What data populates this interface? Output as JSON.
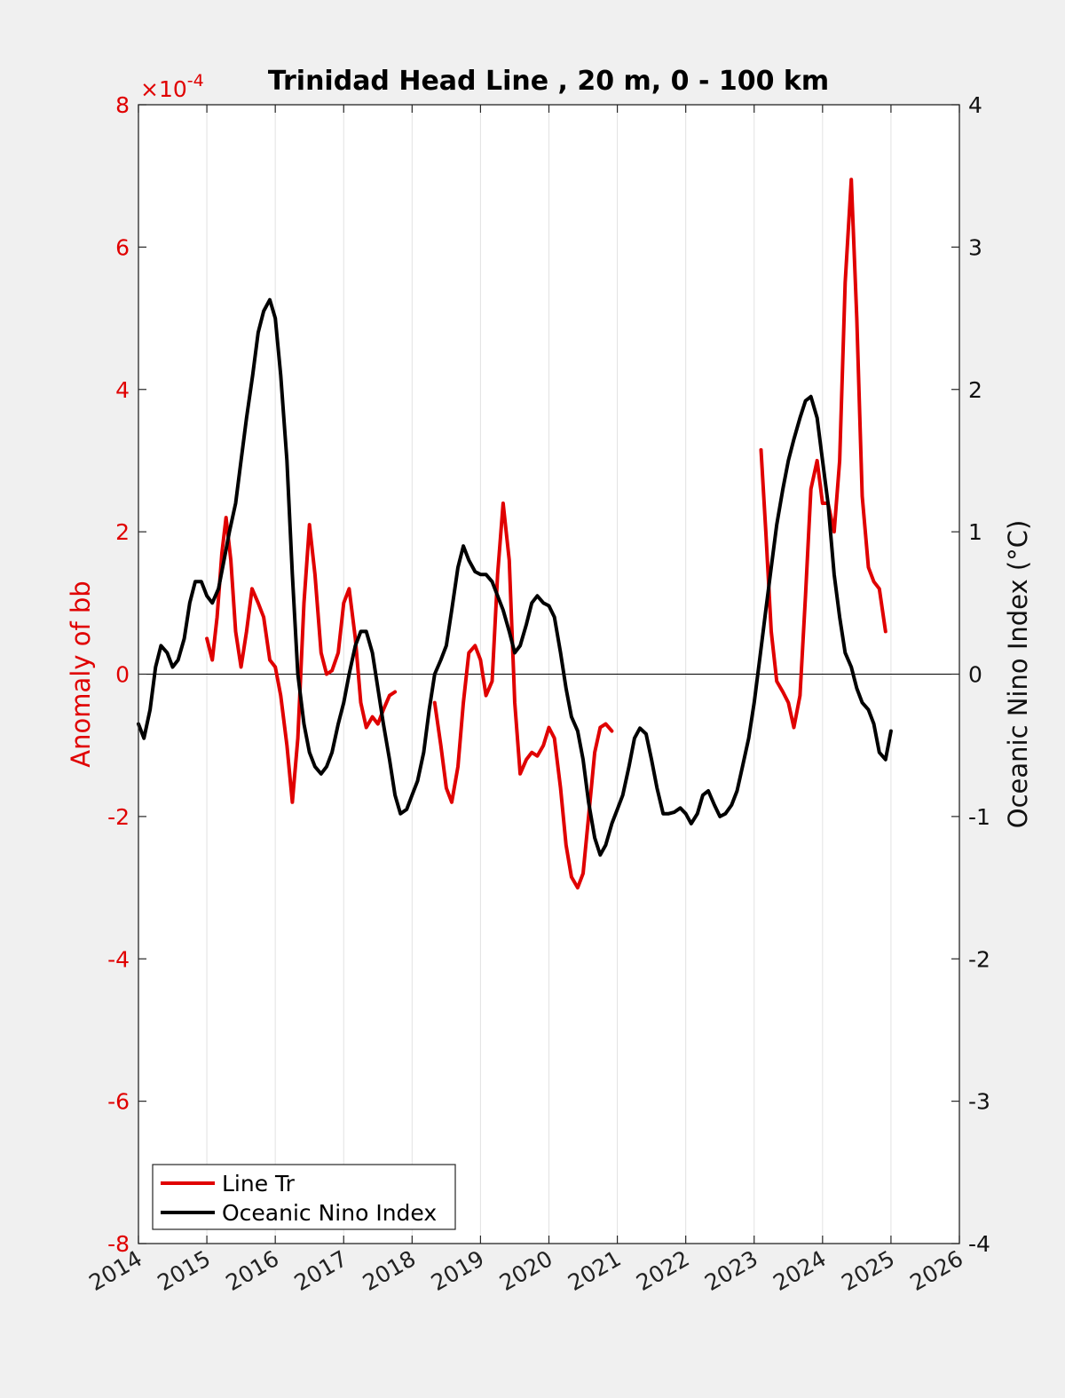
{
  "chart_data": {
    "type": "line",
    "title": "Trinidad Head Line , 20 m, 0 - 100 km",
    "ylabel_left": "Anomaly of bb",
    "ylabel_right": "Oceanic Nino Index (°C)",
    "left_exponent": "×10",
    "left_exponent_power": "-4",
    "xlim": [
      2014,
      2026
    ],
    "ylim_left": [
      -8,
      8
    ],
    "ylim_right": [
      -4,
      4
    ],
    "x_ticks": [
      "2014",
      "2015",
      "2016",
      "2017",
      "2018",
      "2019",
      "2020",
      "2021",
      "2022",
      "2023",
      "2024",
      "2025",
      "2026"
    ],
    "y_ticks_left": [
      "-8",
      "-6",
      "-4",
      "-2",
      "0",
      "2",
      "4",
      "6",
      "8"
    ],
    "y_ticks_right": [
      "-4",
      "-3",
      "-2",
      "-1",
      "0",
      "1",
      "2",
      "3",
      "4"
    ],
    "grid": "vertical",
    "zero_line": true,
    "legend": {
      "position": "bottom-left",
      "entries": [
        {
          "label": "Line Tr",
          "color": "#e00000"
        },
        {
          "label": "Oceanic Nino Index",
          "color": "#000000"
        }
      ]
    },
    "series": [
      {
        "name": "Line Tr",
        "axis": "left",
        "color": "#e00000",
        "segments": [
          [
            [
              2015.0,
              0.5
            ],
            [
              2015.08,
              0.2
            ],
            [
              2015.15,
              0.8
            ],
            [
              2015.22,
              1.7
            ],
            [
              2015.28,
              2.2
            ],
            [
              2015.35,
              1.6
            ],
            [
              2015.42,
              0.6
            ],
            [
              2015.5,
              0.1
            ],
            [
              2015.58,
              0.6
            ],
            [
              2015.66,
              1.2
            ],
            [
              2015.75,
              1.0
            ],
            [
              2015.83,
              0.8
            ],
            [
              2015.92,
              0.2
            ],
            [
              2016.0,
              0.1
            ],
            [
              2016.08,
              -0.3
            ],
            [
              2016.17,
              -1.0
            ],
            [
              2016.25,
              -1.8
            ],
            [
              2016.33,
              -0.9
            ],
            [
              2016.42,
              1.0
            ],
            [
              2016.5,
              2.1
            ],
            [
              2016.58,
              1.4
            ],
            [
              2016.67,
              0.3
            ],
            [
              2016.75,
              0.0
            ],
            [
              2016.83,
              0.05
            ],
            [
              2016.92,
              0.3
            ],
            [
              2017.0,
              1.0
            ],
            [
              2017.08,
              1.2
            ],
            [
              2017.17,
              0.5
            ],
            [
              2017.25,
              -0.4
            ],
            [
              2017.33,
              -0.75
            ],
            [
              2017.42,
              -0.6
            ],
            [
              2017.5,
              -0.7
            ],
            [
              2017.58,
              -0.5
            ],
            [
              2017.67,
              -0.3
            ],
            [
              2017.75,
              -0.25
            ]
          ],
          [
            [
              2018.33,
              -0.4
            ],
            [
              2018.42,
              -1.0
            ],
            [
              2018.5,
              -1.6
            ],
            [
              2018.58,
              -1.8
            ],
            [
              2018.67,
              -1.3
            ],
            [
              2018.75,
              -0.4
            ],
            [
              2018.83,
              0.3
            ],
            [
              2018.92,
              0.4
            ],
            [
              2019.0,
              0.2
            ],
            [
              2019.08,
              -0.3
            ],
            [
              2019.17,
              -0.1
            ],
            [
              2019.25,
              1.4
            ],
            [
              2019.33,
              2.4
            ],
            [
              2019.42,
              1.6
            ],
            [
              2019.5,
              -0.4
            ],
            [
              2019.58,
              -1.4
            ],
            [
              2019.67,
              -1.2
            ],
            [
              2019.75,
              -1.1
            ],
            [
              2019.83,
              -1.15
            ],
            [
              2019.92,
              -1.0
            ],
            [
              2020.0,
              -0.75
            ],
            [
              2020.08,
              -0.9
            ],
            [
              2020.17,
              -1.6
            ],
            [
              2020.25,
              -2.4
            ],
            [
              2020.33,
              -2.85
            ],
            [
              2020.42,
              -3.0
            ],
            [
              2020.5,
              -2.8
            ],
            [
              2020.58,
              -2.0
            ],
            [
              2020.67,
              -1.1
            ],
            [
              2020.75,
              -0.75
            ],
            [
              2020.83,
              -0.7
            ],
            [
              2020.92,
              -0.8
            ]
          ],
          [
            [
              2023.1,
              3.15
            ],
            [
              2023.17,
              2.0
            ],
            [
              2023.25,
              0.6
            ],
            [
              2023.33,
              -0.1
            ],
            [
              2023.42,
              -0.25
            ],
            [
              2023.5,
              -0.4
            ],
            [
              2023.58,
              -0.75
            ],
            [
              2023.67,
              -0.3
            ],
            [
              2023.75,
              1.1
            ],
            [
              2023.83,
              2.6
            ],
            [
              2023.92,
              3.0
            ],
            [
              2024.0,
              2.4
            ],
            [
              2024.08,
              2.4
            ],
            [
              2024.17,
              2.0
            ],
            [
              2024.25,
              3.0
            ],
            [
              2024.33,
              5.5
            ],
            [
              2024.42,
              6.95
            ],
            [
              2024.5,
              5.0
            ],
            [
              2024.58,
              2.5
            ],
            [
              2024.67,
              1.5
            ],
            [
              2024.75,
              1.3
            ],
            [
              2024.83,
              1.2
            ],
            [
              2024.92,
              0.6
            ]
          ]
        ]
      },
      {
        "name": "Oceanic Nino Index",
        "axis": "right",
        "color": "#000000",
        "segments": [
          [
            [
              2014.0,
              -0.35
            ],
            [
              2014.08,
              -0.45
            ],
            [
              2014.17,
              -0.25
            ],
            [
              2014.25,
              0.05
            ],
            [
              2014.33,
              0.2
            ],
            [
              2014.42,
              0.15
            ],
            [
              2014.5,
              0.05
            ],
            [
              2014.58,
              0.1
            ],
            [
              2014.67,
              0.25
            ],
            [
              2014.75,
              0.5
            ],
            [
              2014.83,
              0.65
            ],
            [
              2014.92,
              0.65
            ],
            [
              2015.0,
              0.55
            ],
            [
              2015.08,
              0.5
            ],
            [
              2015.17,
              0.6
            ],
            [
              2015.25,
              0.8
            ],
            [
              2015.33,
              1.0
            ],
            [
              2015.42,
              1.2
            ],
            [
              2015.5,
              1.5
            ],
            [
              2015.58,
              1.8
            ],
            [
              2015.67,
              2.1
            ],
            [
              2015.75,
              2.4
            ],
            [
              2015.83,
              2.55
            ],
            [
              2015.92,
              2.63
            ],
            [
              2016.0,
              2.5
            ],
            [
              2016.08,
              2.1
            ],
            [
              2016.17,
              1.5
            ],
            [
              2016.25,
              0.7
            ],
            [
              2016.33,
              0.0
            ],
            [
              2016.42,
              -0.35
            ],
            [
              2016.5,
              -0.55
            ],
            [
              2016.58,
              -0.65
            ],
            [
              2016.67,
              -0.7
            ],
            [
              2016.75,
              -0.65
            ],
            [
              2016.83,
              -0.55
            ],
            [
              2016.92,
              -0.35
            ],
            [
              2017.0,
              -0.2
            ],
            [
              2017.08,
              0.0
            ],
            [
              2017.17,
              0.2
            ],
            [
              2017.25,
              0.3
            ],
            [
              2017.33,
              0.3
            ],
            [
              2017.42,
              0.15
            ],
            [
              2017.5,
              -0.1
            ],
            [
              2017.58,
              -0.35
            ],
            [
              2017.67,
              -0.6
            ],
            [
              2017.75,
              -0.85
            ],
            [
              2017.83,
              -0.98
            ],
            [
              2017.92,
              -0.95
            ],
            [
              2018.0,
              -0.85
            ],
            [
              2018.08,
              -0.75
            ],
            [
              2018.17,
              -0.55
            ],
            [
              2018.25,
              -0.25
            ],
            [
              2018.33,
              0.0
            ],
            [
              2018.42,
              0.1
            ],
            [
              2018.5,
              0.2
            ],
            [
              2018.58,
              0.45
            ],
            [
              2018.67,
              0.75
            ],
            [
              2018.75,
              0.9
            ],
            [
              2018.83,
              0.8
            ],
            [
              2018.92,
              0.72
            ],
            [
              2019.0,
              0.7
            ],
            [
              2019.08,
              0.7
            ],
            [
              2019.17,
              0.65
            ],
            [
              2019.25,
              0.55
            ],
            [
              2019.33,
              0.45
            ],
            [
              2019.42,
              0.3
            ],
            [
              2019.5,
              0.15
            ],
            [
              2019.58,
              0.2
            ],
            [
              2019.67,
              0.35
            ],
            [
              2019.75,
              0.5
            ],
            [
              2019.83,
              0.55
            ],
            [
              2019.92,
              0.5
            ],
            [
              2020.0,
              0.48
            ],
            [
              2020.08,
              0.4
            ],
            [
              2020.17,
              0.15
            ],
            [
              2020.25,
              -0.1
            ],
            [
              2020.33,
              -0.3
            ],
            [
              2020.42,
              -0.4
            ],
            [
              2020.5,
              -0.6
            ],
            [
              2020.58,
              -0.9
            ],
            [
              2020.67,
              -1.15
            ],
            [
              2020.75,
              -1.27
            ],
            [
              2020.83,
              -1.2
            ],
            [
              2020.92,
              -1.05
            ],
            [
              2021.0,
              -0.95
            ],
            [
              2021.08,
              -0.85
            ],
            [
              2021.17,
              -0.65
            ],
            [
              2021.25,
              -0.45
            ],
            [
              2021.33,
              -0.38
            ],
            [
              2021.42,
              -0.42
            ],
            [
              2021.5,
              -0.6
            ],
            [
              2021.58,
              -0.8
            ],
            [
              2021.67,
              -0.98
            ],
            [
              2021.75,
              -0.98
            ],
            [
              2021.83,
              -0.97
            ],
            [
              2021.92,
              -0.94
            ],
            [
              2022.0,
              -0.98
            ],
            [
              2022.08,
              -1.05
            ],
            [
              2022.17,
              -0.98
            ],
            [
              2022.25,
              -0.85
            ],
            [
              2022.33,
              -0.82
            ],
            [
              2022.42,
              -0.92
            ],
            [
              2022.5,
              -1.0
            ],
            [
              2022.58,
              -0.98
            ],
            [
              2022.67,
              -0.92
            ],
            [
              2022.75,
              -0.82
            ],
            [
              2022.83,
              -0.65
            ],
            [
              2022.92,
              -0.45
            ],
            [
              2023.0,
              -0.2
            ],
            [
              2023.08,
              0.1
            ],
            [
              2023.17,
              0.45
            ],
            [
              2023.25,
              0.75
            ],
            [
              2023.33,
              1.05
            ],
            [
              2023.42,
              1.3
            ],
            [
              2023.5,
              1.5
            ],
            [
              2023.58,
              1.65
            ],
            [
              2023.67,
              1.8
            ],
            [
              2023.75,
              1.92
            ],
            [
              2023.83,
              1.95
            ],
            [
              2023.92,
              1.8
            ],
            [
              2024.0,
              1.5
            ],
            [
              2024.08,
              1.2
            ],
            [
              2024.17,
              0.7
            ],
            [
              2024.25,
              0.4
            ],
            [
              2024.33,
              0.15
            ],
            [
              2024.42,
              0.05
            ],
            [
              2024.5,
              -0.1
            ],
            [
              2024.58,
              -0.2
            ],
            [
              2024.67,
              -0.25
            ],
            [
              2024.75,
              -0.35
            ],
            [
              2024.83,
              -0.55
            ],
            [
              2024.92,
              -0.6
            ],
            [
              2025.0,
              -0.4
            ]
          ]
        ]
      }
    ]
  }
}
